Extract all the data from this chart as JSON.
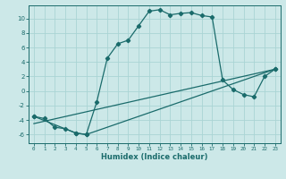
{
  "xlabel": "Humidex (Indice chaleur)",
  "ylabel": "",
  "bg_color": "#cce8e8",
  "line_color": "#1a6b6b",
  "grid_color": "#aad4d4",
  "xlim": [
    -0.5,
    23.5
  ],
  "ylim": [
    -7.2,
    11.8
  ],
  "xticks": [
    0,
    1,
    2,
    3,
    4,
    5,
    6,
    7,
    8,
    9,
    10,
    11,
    12,
    13,
    14,
    15,
    16,
    17,
    18,
    19,
    20,
    21,
    22,
    23
  ],
  "yticks": [
    -6,
    -4,
    -2,
    0,
    2,
    4,
    6,
    8,
    10
  ],
  "curve1_x": [
    0,
    1,
    2,
    3,
    4,
    5,
    6,
    7,
    8,
    9,
    10,
    11,
    12,
    13,
    14,
    15,
    16,
    17,
    18,
    19,
    20,
    21,
    22,
    23
  ],
  "curve1_y": [
    -3.5,
    -3.8,
    -5.0,
    -5.2,
    -5.8,
    -6.0,
    -1.5,
    4.5,
    6.5,
    7.0,
    9.0,
    11.0,
    11.2,
    10.5,
    10.7,
    10.8,
    10.4,
    10.2,
    1.5,
    0.2,
    -0.5,
    -0.8,
    2.0,
    3.0
  ],
  "curve2_x": [
    0,
    4,
    5,
    23
  ],
  "curve2_y": [
    -3.5,
    -5.8,
    -6.0,
    3.0
  ],
  "curve3_x": [
    0,
    23
  ],
  "curve3_y": [
    -4.5,
    3.0
  ],
  "marker": "D",
  "marker_size": 2.2,
  "linewidth": 0.9
}
